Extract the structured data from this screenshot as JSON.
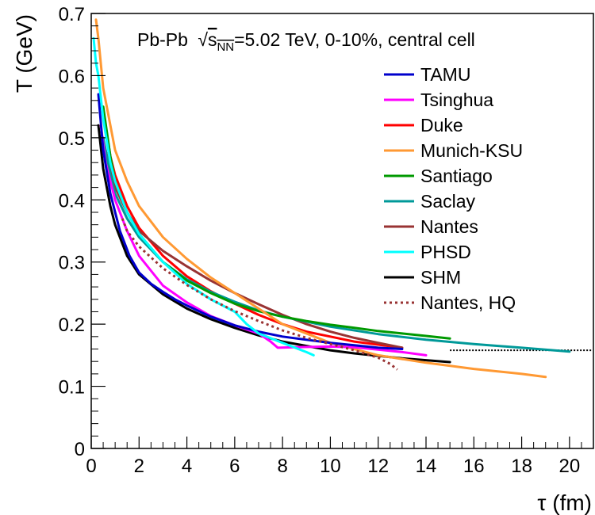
{
  "chart_data": {
    "type": "line",
    "title": "Pb-Pb √s_NN=5.02 TeV, 0-10%, central cell",
    "annotation": {
      "system": "Pb-Pb",
      "sqrt_symbol": "√",
      "s": "s",
      "sub": "NN",
      "rest": "=5.02 TeV, 0-10%, central cell"
    },
    "xlabel": "τ (fm)",
    "ylabel": "T (GeV)",
    "xlim": [
      0,
      21
    ],
    "ylim": [
      0,
      0.7
    ],
    "xticks": [
      0,
      2,
      4,
      6,
      8,
      10,
      12,
      14,
      16,
      18,
      20
    ],
    "yticks": [
      0,
      0.1,
      0.2,
      0.3,
      0.4,
      0.5,
      0.6,
      0.7
    ],
    "xtick_labels": [
      "0",
      "2",
      "4",
      "6",
      "8",
      "10",
      "12",
      "14",
      "16",
      "18",
      "20"
    ],
    "ytick_labels": [
      "0",
      "0.1",
      "0.2",
      "0.3",
      "0.4",
      "0.5",
      "0.6",
      "0.7"
    ],
    "grid": false,
    "legend_position": "top-right",
    "reference_line": {
      "style": "dotted",
      "color": "#000000",
      "y": 0.158,
      "x": [
        15,
        21
      ]
    },
    "series": [
      {
        "name": "TAMU",
        "color": "#0000cc",
        "style": "solid",
        "x": [
          0.3,
          0.5,
          0.8,
          1.2,
          1.6,
          2.0,
          2.5,
          3.0,
          3.5,
          4.0,
          5.0,
          6.0,
          7.0,
          8.0,
          9.0,
          10.0,
          11.0,
          12.0,
          13.0
        ],
        "y": [
          0.57,
          0.48,
          0.41,
          0.35,
          0.31,
          0.283,
          0.265,
          0.252,
          0.24,
          0.23,
          0.212,
          0.198,
          0.188,
          0.18,
          0.175,
          0.17,
          0.166,
          0.162,
          0.16
        ]
      },
      {
        "name": "Tsinghua",
        "color": "#ff00ff",
        "style": "solid",
        "x": [
          0.4,
          0.6,
          1.0,
          1.5,
          2.0,
          3.0,
          4.0,
          5.0,
          6.0,
          7.0,
          7.5,
          7.8,
          8.5,
          10.0,
          11.0,
          12.0,
          13.0,
          14.0
        ],
        "y": [
          0.52,
          0.46,
          0.4,
          0.35,
          0.31,
          0.262,
          0.235,
          0.213,
          0.198,
          0.185,
          0.172,
          0.162,
          0.163,
          0.164,
          0.163,
          0.159,
          0.155,
          0.15
        ]
      },
      {
        "name": "Duke",
        "color": "#ff0000",
        "style": "solid",
        "x": [
          0.6,
          0.8,
          1.0,
          1.5,
          2.0,
          3.0,
          4.0,
          5.0,
          6.0,
          7.0,
          8.0,
          9.0,
          10.0,
          11.0,
          12.0,
          13.0
        ],
        "y": [
          0.52,
          0.47,
          0.44,
          0.39,
          0.355,
          0.31,
          0.277,
          0.253,
          0.233,
          0.215,
          0.2,
          0.188,
          0.18,
          0.172,
          0.167,
          0.162
        ]
      },
      {
        "name": "Munich-KSU",
        "color": "#ff9933",
        "style": "solid",
        "x": [
          0.2,
          0.3,
          0.5,
          0.8,
          1.0,
          1.5,
          2.0,
          3.0,
          4.0,
          5.0,
          6.0,
          7.0,
          8.0,
          10.0,
          12.0,
          14.0,
          16.0,
          17.0,
          18.0,
          19.0
        ],
        "y": [
          0.69,
          0.66,
          0.58,
          0.52,
          0.48,
          0.43,
          0.39,
          0.34,
          0.305,
          0.275,
          0.25,
          0.225,
          0.2,
          0.17,
          0.15,
          0.138,
          0.128,
          0.124,
          0.12,
          0.115
        ]
      },
      {
        "name": "Santiago",
        "color": "#009900",
        "style": "solid",
        "x": [
          0.5,
          0.8,
          1.0,
          1.5,
          2.0,
          3.0,
          4.0,
          5.0,
          6.0,
          7.0,
          8.0,
          9.0,
          10.0,
          11.0,
          12.0,
          13.0,
          14.0,
          15.0
        ],
        "y": [
          0.55,
          0.47,
          0.43,
          0.38,
          0.345,
          0.3,
          0.27,
          0.25,
          0.233,
          0.221,
          0.212,
          0.205,
          0.199,
          0.194,
          0.189,
          0.185,
          0.181,
          0.177
        ]
      },
      {
        "name": "Saclay",
        "color": "#009999",
        "style": "solid",
        "x": [
          0.5,
          0.8,
          1.0,
          1.5,
          2.0,
          3.0,
          4.0,
          5.0,
          6.0,
          7.0,
          8.0,
          10.0,
          12.0,
          14.0,
          16.0,
          18.0,
          20.0
        ],
        "y": [
          0.5,
          0.44,
          0.41,
          0.37,
          0.34,
          0.3,
          0.272,
          0.252,
          0.236,
          0.222,
          0.212,
          0.196,
          0.184,
          0.175,
          0.168,
          0.162,
          0.156
        ]
      },
      {
        "name": "Nantes",
        "color": "#993333",
        "style": "solid",
        "x": [
          0.6,
          1.0,
          1.5,
          2.0,
          3.0,
          4.0,
          5.0,
          6.0,
          7.0,
          8.0,
          9.0,
          10.0,
          11.0,
          12.0,
          13.0
        ],
        "y": [
          0.48,
          0.42,
          0.38,
          0.35,
          0.318,
          0.293,
          0.27,
          0.25,
          0.232,
          0.215,
          0.2,
          0.188,
          0.178,
          0.17,
          0.162
        ]
      },
      {
        "name": "PHSD",
        "color": "#00ffff",
        "style": "solid",
        "x": [
          0.1,
          0.2,
          0.3,
          0.5,
          0.8,
          1.0,
          1.5,
          2.0,
          3.0,
          4.0,
          5.0,
          6.0,
          6.5,
          7.0,
          8.0,
          9.0,
          9.3
        ],
        "y": [
          0.66,
          0.62,
          0.6,
          0.53,
          0.46,
          0.43,
          0.38,
          0.345,
          0.3,
          0.265,
          0.24,
          0.22,
          0.2,
          0.185,
          0.17,
          0.155,
          0.15
        ]
      },
      {
        "name": "SHM",
        "color": "#000000",
        "style": "solid",
        "x": [
          0.3,
          0.5,
          0.8,
          1.0,
          1.5,
          2.0,
          3.0,
          4.0,
          5.0,
          6.0,
          7.0,
          8.0,
          9.0,
          10.0,
          11.0,
          12.0,
          13.0,
          14.0,
          15.0
        ],
        "y": [
          0.52,
          0.45,
          0.39,
          0.36,
          0.31,
          0.28,
          0.248,
          0.225,
          0.208,
          0.194,
          0.182,
          0.172,
          0.165,
          0.158,
          0.153,
          0.149,
          0.145,
          0.142,
          0.139
        ]
      },
      {
        "name": "Nantes, HQ",
        "color": "#993333",
        "style": "dotted",
        "x": [
          1.3,
          1.5,
          2.0,
          3.0,
          4.0,
          5.0,
          6.0,
          7.0,
          8.0,
          9.0,
          10.0,
          11.0,
          12.0,
          12.5,
          12.8
        ],
        "y": [
          0.37,
          0.35,
          0.325,
          0.29,
          0.263,
          0.24,
          0.221,
          0.205,
          0.19,
          0.178,
          0.168,
          0.158,
          0.146,
          0.136,
          0.127
        ]
      }
    ]
  }
}
